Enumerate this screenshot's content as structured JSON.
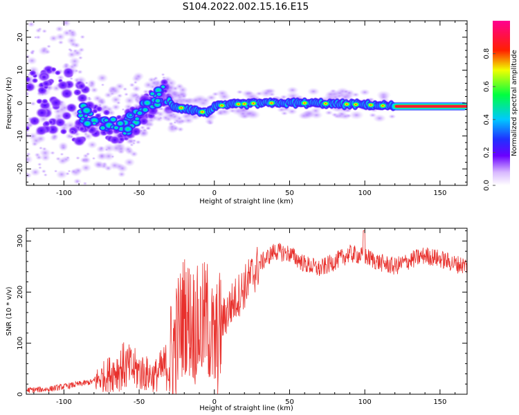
{
  "figure_title": "S104.2022.002.15.16.E15",
  "chart_data": [
    {
      "type": "heatmap",
      "title": "",
      "xlabel": "Height of straight line (km)",
      "ylabel": "Frequency (Hz)",
      "xlim": [
        -125,
        168
      ],
      "ylim": [
        -25,
        25
      ],
      "xticks": [
        -100,
        -50,
        0,
        50,
        100,
        150
      ],
      "yticks": [
        -20,
        -10,
        0,
        10,
        20
      ],
      "colorbar": {
        "label": "Normalized spectral amplitude",
        "range": [
          0,
          1
        ],
        "ticks": [
          0.0,
          0.2,
          0.4,
          0.6,
          0.8
        ],
        "colormap": "rainbow (white/violet → blue → cyan → green → yellow → red → magenta)"
      },
      "ridge": [
        {
          "x": -125,
          "y": 2
        },
        {
          "x": -100,
          "y": 1
        },
        {
          "x": -85,
          "y": -4
        },
        {
          "x": -75,
          "y": -6
        },
        {
          "x": -62,
          "y": -8
        },
        {
          "x": -50,
          "y": -4
        },
        {
          "x": -40,
          "y": 1
        },
        {
          "x": -33,
          "y": 3
        },
        {
          "x": -28,
          "y": -1
        },
        {
          "x": -15,
          "y": -2
        },
        {
          "x": -5,
          "y": -3
        },
        {
          "x": 0,
          "y": -1
        },
        {
          "x": 10,
          "y": -0.5
        },
        {
          "x": 30,
          "y": 0
        },
        {
          "x": 60,
          "y": 0
        },
        {
          "x": 100,
          "y": -0.5
        },
        {
          "x": 120,
          "y": -1
        },
        {
          "x": 168,
          "y": -1
        }
      ]
    },
    {
      "type": "line",
      "title": "",
      "xlabel": "Height of straight line (km)",
      "ylabel": "SNR (10 * v/v)",
      "xlim": [
        -125,
        168
      ],
      "ylim": [
        0,
        325
      ],
      "xticks": [
        -100,
        -50,
        0,
        50,
        100,
        150
      ],
      "yticks": [
        0,
        100,
        200,
        300
      ],
      "color": "#e8302c",
      "x": [
        -125,
        -110,
        -100,
        -90,
        -80,
        -70,
        -60,
        -50,
        -40,
        -30,
        -25,
        -20,
        -15,
        -10,
        -5,
        0,
        5,
        10,
        20,
        30,
        40,
        50,
        60,
        70,
        80,
        90,
        100,
        110,
        120,
        130,
        140,
        150,
        160,
        168
      ],
      "values": [
        8,
        10,
        15,
        20,
        25,
        40,
        55,
        45,
        35,
        60,
        110,
        160,
        140,
        130,
        150,
        90,
        140,
        170,
        210,
        255,
        280,
        275,
        255,
        245,
        260,
        275,
        270,
        258,
        250,
        262,
        272,
        265,
        255,
        252
      ]
    }
  ]
}
